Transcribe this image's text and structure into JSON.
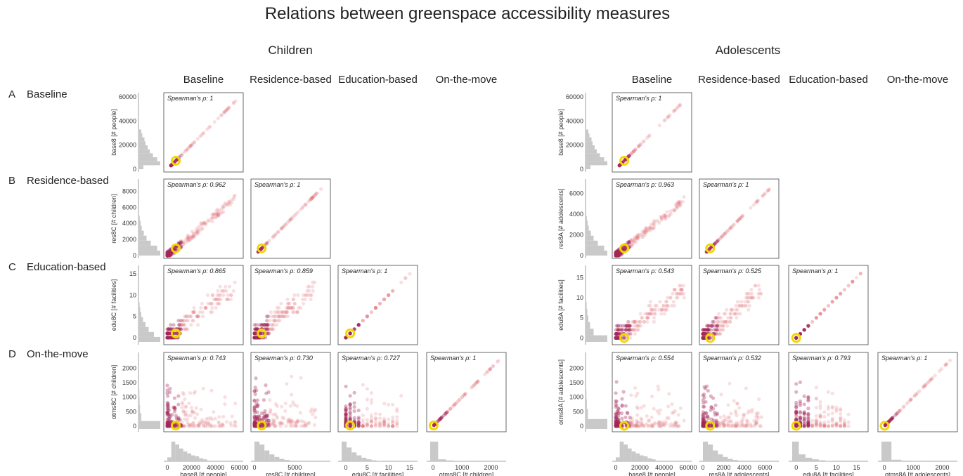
{
  "title": "Relations between greenspace accessibility measures",
  "row_headers": [
    {
      "letter": "A",
      "label": "Baseline"
    },
    {
      "letter": "B",
      "label": "Residence-based"
    },
    {
      "letter": "C",
      "label": "Education-based"
    },
    {
      "letter": "D",
      "label": "On-the-move"
    }
  ],
  "chart_data": [
    {
      "type": "scatter",
      "title": "Children",
      "column_titles": [
        "Baseline",
        "Residence-based",
        "Education-based",
        "On-the-move"
      ],
      "variables": [
        {
          "name": "base8",
          "label": "base8 [# people]",
          "lim": [
            0,
            60000
          ],
          "ticks": [
            0,
            20000,
            40000,
            60000
          ],
          "ytick_labels": [
            "0",
            "20000",
            "40000",
            "60000"
          ],
          "xtick_labels": [
            "0",
            "20000",
            "40000",
            "60000"
          ],
          "median": 7000,
          "hist": [
            0.2,
            1.0,
            0.85,
            0.65,
            0.5,
            0.4,
            0.3,
            0.25,
            0.15,
            0.1
          ]
        },
        {
          "name": "res8C",
          "label": "res8C [# children]",
          "lim": [
            0,
            9000
          ],
          "ticks": [
            0,
            2000,
            4000,
            6000,
            8000
          ],
          "ytick_labels": [
            "0",
            "2000",
            "4000",
            "6000",
            "8000"
          ],
          "xticks": [
            0,
            5000
          ],
          "xtick_labels": [
            "0",
            "5000"
          ],
          "median": 900,
          "hist": [
            1.0,
            0.85,
            0.55,
            0.35,
            0.22,
            0.12,
            0.07,
            0.03
          ]
        },
        {
          "name": "edu8C",
          "label": "edu8C [# facilities]",
          "lim": [
            -1,
            16
          ],
          "ticks": [
            0,
            5,
            10,
            15
          ],
          "ytick_labels": [
            "0",
            "5",
            "10",
            "15"
          ],
          "xtick_labels": [
            "0",
            "5",
            "10",
            "15"
          ],
          "median": 1,
          "hist": [
            1.0,
            0.7,
            0.45,
            0.3,
            0.18,
            0.1,
            0.05,
            0.02
          ]
        },
        {
          "name": "otms8C",
          "label": "otms8C [# children]",
          "lim": [
            -100,
            2400
          ],
          "ticks": [
            0,
            500,
            1000,
            1500,
            2000
          ],
          "ytick_labels": [
            "0",
            "500",
            "1000",
            "1500",
            "2000"
          ],
          "xticks": [
            0,
            1000,
            2000
          ],
          "xtick_labels": [
            "0",
            "1000",
            "2000"
          ],
          "median": 20,
          "hist": [
            1.0,
            0.1,
            0.04,
            0.02,
            0.01
          ]
        }
      ],
      "correlations": [
        [
          "Spearman's ρ: 1"
        ],
        [
          "Spearman's ρ: 0.962",
          "Spearman's ρ: 1"
        ],
        [
          "Spearman's ρ: 0.865",
          "Spearman's ρ: 0.859",
          "Spearman's ρ: 1"
        ],
        [
          "Spearman's ρ: 0.743",
          "Spearman's ρ: 0.730",
          "Spearman's ρ: 0.727",
          "Spearman's ρ: 1"
        ]
      ]
    },
    {
      "type": "scatter",
      "title": "Adolescents",
      "column_titles": [
        "Baseline",
        "Residence-based",
        "Education-based",
        "On-the-move"
      ],
      "variables": [
        {
          "name": "base8",
          "label": "base8 [# people]",
          "lim": [
            0,
            60000
          ],
          "ticks": [
            0,
            20000,
            40000,
            60000
          ],
          "ytick_labels": [
            "0",
            "20000",
            "40000",
            "60000"
          ],
          "xtick_labels": [
            "0",
            "20000",
            "40000",
            "60000"
          ],
          "median": 7000,
          "hist": [
            0.2,
            1.0,
            0.85,
            0.65,
            0.5,
            0.4,
            0.3,
            0.25,
            0.15,
            0.1
          ]
        },
        {
          "name": "res8A",
          "label": "res8A [# adolescents]",
          "lim": [
            0,
            7000
          ],
          "ticks": [
            0,
            2000,
            4000,
            6000
          ],
          "ytick_labels": [
            "0",
            "2000",
            "4000",
            "6000"
          ],
          "xtick_labels": [
            "0",
            "2000",
            "4000",
            "6000"
          ],
          "median": 700,
          "hist": [
            1.0,
            0.85,
            0.55,
            0.35,
            0.22,
            0.12,
            0.07,
            0.03
          ]
        },
        {
          "name": "edu8A",
          "label": "edu8A [# facilities]",
          "lim": [
            -1,
            17
          ],
          "ticks": [
            0,
            5,
            10,
            15
          ],
          "ytick_labels": [
            "0",
            "5",
            "10",
            "15"
          ],
          "xtick_labels": [
            "0",
            "5",
            "10",
            "15"
          ],
          "median": 0,
          "hist": [
            1.0,
            0.35,
            0.18,
            0.1,
            0.05,
            0.02
          ]
        },
        {
          "name": "otms8A",
          "label": "otms8A [# adolescents]",
          "lim": [
            -100,
            2400
          ],
          "ticks": [
            0,
            500,
            1000,
            1500,
            2000
          ],
          "ytick_labels": [
            "0",
            "500",
            "1000",
            "1500",
            "2000"
          ],
          "xticks": [
            0,
            1000,
            2000
          ],
          "xtick_labels": [
            "0",
            "1000",
            "2000"
          ],
          "median": 10,
          "hist": [
            1.0,
            0.08,
            0.03,
            0.01
          ]
        }
      ],
      "correlations": [
        [
          "Spearman's ρ: 1"
        ],
        [
          "Spearman's ρ: 0.963",
          "Spearman's ρ: 1"
        ],
        [
          "Spearman's ρ: 0.543",
          "Spearman's ρ: 0.525",
          "Spearman's ρ: 1"
        ],
        [
          "Spearman's ρ: 0.554",
          "Spearman's ρ: 0.532",
          "Spearman's ρ: 0.793",
          "Spearman's ρ: 1"
        ]
      ]
    }
  ],
  "colors": {
    "point": "#a3285a",
    "point_light": "#e0707a",
    "highlight": "#f2d600",
    "histogram": "#c9c9c9",
    "frame": "#444444"
  }
}
